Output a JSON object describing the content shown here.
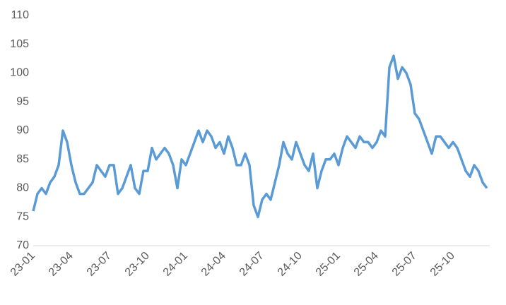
{
  "chart_data": {
    "type": "line",
    "categories": [
      "23-01",
      null,
      null,
      null,
      null,
      null,
      null,
      null,
      null,
      "23-04",
      null,
      null,
      null,
      null,
      null,
      null,
      null,
      null,
      "23-07",
      null,
      null,
      null,
      null,
      null,
      null,
      null,
      null,
      "23-10",
      null,
      null,
      null,
      null,
      null,
      null,
      null,
      null,
      "24-01",
      null,
      null,
      null,
      null,
      null,
      null,
      null,
      null,
      "24-04",
      null,
      null,
      null,
      null,
      null,
      null,
      null,
      null,
      "24-07",
      null,
      null,
      null,
      null,
      null,
      null,
      null,
      null,
      "24-10",
      null,
      null,
      null,
      null,
      null,
      null,
      null,
      null,
      "25-01",
      null,
      null,
      null,
      null,
      null,
      null,
      null,
      null,
      "25-04",
      null,
      null,
      null,
      null,
      null,
      null,
      null,
      null,
      "25-07",
      null,
      null,
      null,
      null,
      null,
      null,
      null,
      null,
      "25-10",
      null,
      null,
      null,
      null,
      null,
      null,
      null,
      null
    ],
    "series": [
      {
        "color": "#5b9bd5",
        "values": [
          76,
          79,
          80,
          79,
          81,
          82,
          84,
          90,
          88,
          84,
          81,
          79,
          79,
          80,
          81,
          84,
          83,
          82,
          84,
          84,
          79,
          80,
          82,
          84,
          80,
          79,
          83,
          83,
          87,
          85,
          86,
          87,
          86,
          84,
          80,
          85,
          84,
          86,
          88,
          90,
          88,
          90,
          89,
          87,
          88,
          86,
          89,
          87,
          84,
          84,
          86,
          84,
          77,
          75,
          78,
          79,
          78,
          81,
          84,
          88,
          86,
          85,
          88,
          86,
          84,
          83,
          86,
          80,
          83,
          85,
          85,
          86,
          84,
          87,
          89,
          88,
          87,
          89,
          88,
          88,
          87,
          88,
          90,
          89,
          101,
          103,
          99,
          101,
          100,
          98,
          93,
          92,
          90,
          88,
          86,
          89,
          89,
          88,
          87,
          88,
          87,
          85,
          83,
          82,
          84,
          83,
          81,
          80
        ]
      }
    ],
    "ylim": [
      70,
      110
    ],
    "yticks": [
      70,
      75,
      80,
      85,
      90,
      95,
      100,
      105,
      110
    ]
  }
}
